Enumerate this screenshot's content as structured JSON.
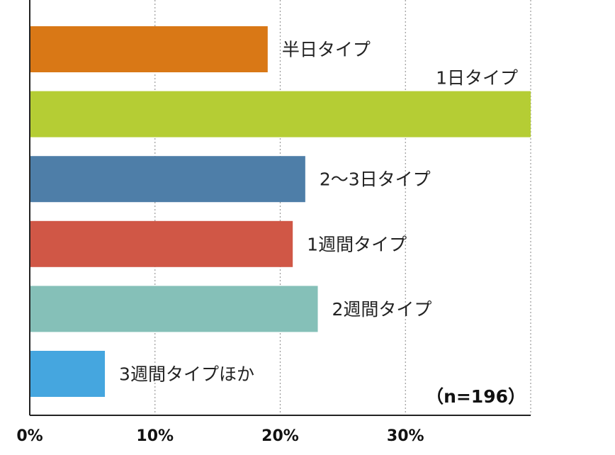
{
  "chart_data": {
    "type": "bar",
    "orientation": "horizontal",
    "categories": [
      "半日タイプ",
      "1日タイプ",
      "2〜3日タイプ",
      "1週間タイプ",
      "2週間タイプ",
      "3週間タイプほか"
    ],
    "values": [
      19.0,
      40.0,
      22.0,
      21.0,
      23.0,
      6.0
    ],
    "colors": [
      "#D97816",
      "#B5CD34",
      "#4E7EA8",
      "#D05746",
      "#85C0B8",
      "#45A6DF"
    ],
    "xlim": [
      0,
      40
    ],
    "xticks": [
      0,
      10,
      20,
      30
    ],
    "xtick_labels": [
      "0%",
      "10%",
      "20%",
      "30%"
    ],
    "grid": "vertical-dotted",
    "annotation": "（n=196）",
    "title": "",
    "xlabel": "",
    "ylabel": ""
  }
}
